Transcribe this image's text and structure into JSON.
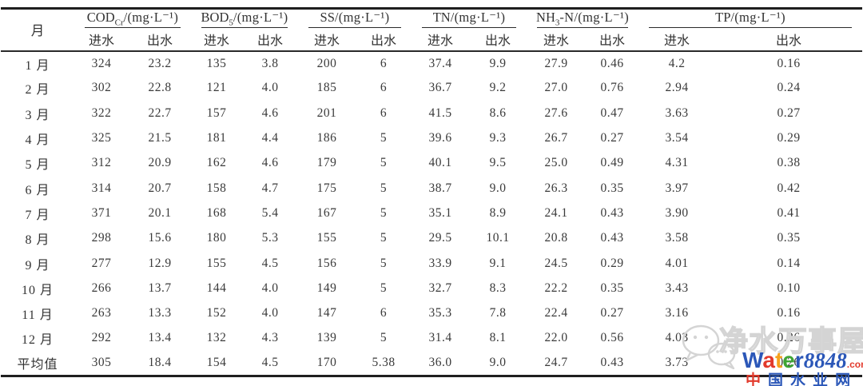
{
  "table": {
    "month_header": "月",
    "influent_label": "进水",
    "effluent_label": "出水",
    "average_label": "平均值",
    "groups": [
      {
        "base": "COD",
        "sub": "Cr",
        "rest": "/(mg·L⁻¹)"
      },
      {
        "base": "BOD",
        "sub": "5",
        "rest": "/(mg·L⁻¹)"
      },
      {
        "base": "SS",
        "sub": "",
        "rest": "/(mg·L⁻¹)"
      },
      {
        "base": "TN",
        "sub": "",
        "rest": "/(mg·L⁻¹)"
      },
      {
        "base": "NH",
        "sub": "3",
        "rest": "-N/(mg·L⁻¹)"
      },
      {
        "base": "TP",
        "sub": "",
        "rest": "/(mg·L⁻¹)"
      }
    ],
    "sub_columns": [
      "进水",
      "出水",
      "进水",
      "出水",
      "进水",
      "出水",
      "进水",
      "出水",
      "进水",
      "出水",
      "进水",
      "出水"
    ],
    "rows": [
      [
        "1 月",
        "324",
        "23.2",
        "135",
        "3.8",
        "200",
        "6",
        "37.4",
        "9.9",
        "27.9",
        "0.46",
        "4.2",
        "0.16"
      ],
      [
        "2 月",
        "302",
        "22.8",
        "121",
        "4.0",
        "185",
        "6",
        "36.7",
        "9.2",
        "27.0",
        "0.76",
        "2.94",
        "0.24"
      ],
      [
        "3 月",
        "322",
        "22.7",
        "157",
        "4.6",
        "201",
        "6",
        "41.5",
        "8.6",
        "27.6",
        "0.47",
        "3.63",
        "0.27"
      ],
      [
        "4 月",
        "325",
        "21.5",
        "181",
        "4.4",
        "186",
        "5",
        "39.6",
        "9.3",
        "26.7",
        "0.27",
        "3.54",
        "0.29"
      ],
      [
        "5 月",
        "312",
        "20.9",
        "162",
        "4.6",
        "179",
        "5",
        "40.1",
        "9.5",
        "25.0",
        "0.49",
        "4.31",
        "0.38"
      ],
      [
        "6 月",
        "314",
        "20.7",
        "158",
        "4.7",
        "175",
        "5",
        "38.7",
        "9.0",
        "26.3",
        "0.35",
        "3.97",
        "0.42"
      ],
      [
        "7 月",
        "371",
        "20.1",
        "168",
        "5.4",
        "167",
        "5",
        "35.1",
        "8.9",
        "24.1",
        "0.43",
        "3.90",
        "0.41"
      ],
      [
        "8 月",
        "298",
        "15.6",
        "180",
        "5.3",
        "155",
        "5",
        "29.5",
        "10.1",
        "20.8",
        "0.43",
        "3.58",
        "0.35"
      ],
      [
        "9 月",
        "277",
        "12.9",
        "155",
        "4.5",
        "156",
        "5",
        "33.9",
        "9.1",
        "24.5",
        "0.29",
        "4.01",
        "0.14"
      ],
      [
        "10 月",
        "266",
        "13.7",
        "144",
        "4.0",
        "149",
        "5",
        "32.7",
        "8.3",
        "22.2",
        "0.35",
        "3.43",
        "0.10"
      ],
      [
        "11 月",
        "263",
        "13.3",
        "152",
        "4.0",
        "147",
        "6",
        "35.3",
        "7.8",
        "22.4",
        "0.27",
        "3.16",
        "0.16"
      ],
      [
        "12 月",
        "292",
        "13.4",
        "132",
        "4.3",
        "139",
        "5",
        "31.4",
        "8.1",
        "22.0",
        "0.56",
        "4.03",
        "0.26"
      ],
      [
        "平均值",
        "305",
        "18.4",
        "154",
        "4.5",
        "170",
        "5.38",
        "36.0",
        "9.0",
        "24.7",
        "0.43",
        "3.73",
        "0.26"
      ]
    ]
  },
  "watermark": {
    "outline_text": "净水万事屋",
    "logo_letters": [
      "W",
      "a",
      "t",
      "e",
      "r"
    ],
    "logo_number": "8848",
    "logo_domain": ".com",
    "site_name_chars": [
      "中",
      "国",
      "水",
      "业",
      "网"
    ],
    "colors": {
      "blue": "#2b57b8",
      "red": "#e23a2c",
      "orange": "#f6a11c",
      "green": "#3fa535",
      "outline_gray": "#d4d4d4"
    }
  }
}
